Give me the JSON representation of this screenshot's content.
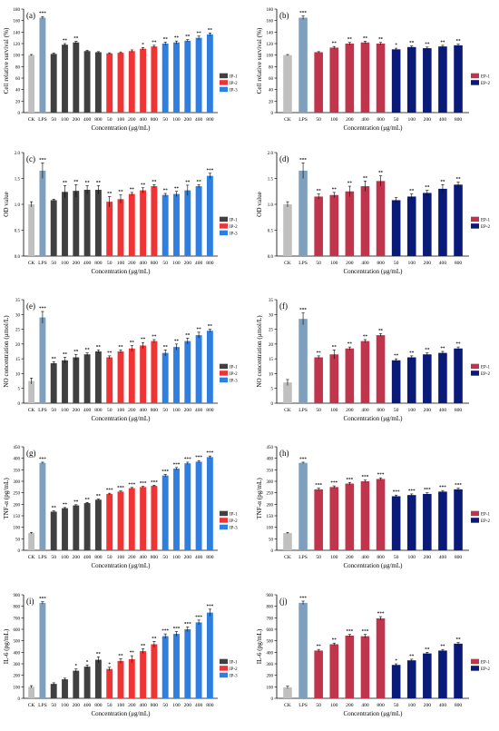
{
  "figure": {
    "x_axis_label": "Concentration (μg/mL)",
    "colors": {
      "ck": "#c0c0c0",
      "lps": "#7f9fbf",
      "ip1": "#404040",
      "ip2": "#ee3434",
      "ip3": "#2f7fe0",
      "ep1": "#c0354c",
      "ep2": "#0a1a78"
    }
  },
  "chart_data": [
    {
      "panel_label": "(a)",
      "type": "bar",
      "ylabel": "Cell relative survival (%)",
      "ylim": [
        0,
        180
      ],
      "yticks": [
        0,
        20,
        40,
        60,
        80,
        100,
        120,
        140,
        160,
        180
      ],
      "xlabel": "Concentration (μg/mL)",
      "categories": [
        "CK",
        "LPS",
        "50",
        "100",
        "200",
        "400",
        "800",
        "50",
        "100",
        "200",
        "400",
        "800",
        "50",
        "100",
        "200",
        "400",
        "800"
      ],
      "values": [
        100,
        165,
        102,
        118,
        122,
        107,
        105,
        103,
        104,
        107,
        111,
        115,
        120,
        122,
        125,
        130,
        136
      ],
      "errors": [
        1,
        2,
        1.5,
        2,
        2,
        1.5,
        1,
        1,
        1.5,
        2,
        2,
        2,
        2.5,
        2.5,
        2,
        3,
        2.5
      ],
      "significance": [
        "",
        "***",
        "",
        "**",
        "**",
        "",
        "",
        "",
        "",
        "",
        "*",
        "**",
        "**",
        "**",
        "**",
        "**",
        "**"
      ],
      "color_keys": [
        "ck",
        "lps",
        "ip1",
        "ip1",
        "ip1",
        "ip1",
        "ip1",
        "ip2",
        "ip2",
        "ip2",
        "ip2",
        "ip2",
        "ip3",
        "ip3",
        "ip3",
        "ip3",
        "ip3"
      ],
      "legend": [
        {
          "label": "IP-1",
          "color_key": "ip1"
        },
        {
          "label": "IP-2",
          "color_key": "ip2"
        },
        {
          "label": "IP-3",
          "color_key": "ip3"
        }
      ]
    },
    {
      "panel_label": "(b)",
      "type": "bar",
      "ylabel": "Cell relative survival (%)",
      "ylim": [
        0,
        180
      ],
      "yticks": [
        0,
        20,
        40,
        60,
        80,
        100,
        120,
        140,
        160,
        180
      ],
      "xlabel": "Concentration (μg/mL)",
      "categories": [
        "CK",
        "LPS",
        "50",
        "100",
        "200",
        "400",
        "800",
        "50",
        "100",
        "200",
        "400",
        "800"
      ],
      "values": [
        100,
        165,
        105,
        113,
        120,
        122,
        120,
        110,
        114,
        112,
        115,
        117
      ],
      "errors": [
        1,
        3,
        1,
        2,
        2,
        2,
        2,
        2,
        2,
        2,
        2,
        2
      ],
      "significance": [
        "",
        "***",
        "",
        "**",
        "**",
        "**",
        "**",
        "*",
        "**",
        "**",
        "**",
        "**"
      ],
      "color_keys": [
        "ck",
        "lps",
        "ep1",
        "ep1",
        "ep1",
        "ep1",
        "ep1",
        "ep2",
        "ep2",
        "ep2",
        "ep2",
        "ep2"
      ],
      "legend": [
        {
          "label": "EP-1",
          "color_key": "ep1"
        },
        {
          "label": "EP-2",
          "color_key": "ep2"
        }
      ]
    },
    {
      "panel_label": "(c)",
      "type": "bar",
      "ylabel": "OD value",
      "ylim": [
        0,
        2.0
      ],
      "yticks": [
        0.0,
        0.5,
        1.0,
        1.5,
        2.0
      ],
      "ytick_labels": [
        "0.0",
        "0.5",
        "1.0",
        "1.5",
        "2.0"
      ],
      "xlabel": "Concentration (μg/mL)",
      "categories": [
        "CK",
        "LPS",
        "50",
        "100",
        "200",
        "400",
        "800",
        "50",
        "100",
        "200",
        "400",
        "800",
        "50",
        "100",
        "200",
        "400",
        "800"
      ],
      "values": [
        1.0,
        1.65,
        1.08,
        1.24,
        1.26,
        1.28,
        1.28,
        1.05,
        1.1,
        1.2,
        1.27,
        1.35,
        1.18,
        1.2,
        1.27,
        1.35,
        1.55
      ],
      "errors": [
        0.05,
        0.15,
        0.02,
        0.12,
        0.12,
        0.08,
        0.08,
        0.1,
        0.08,
        0.03,
        0.05,
        0.03,
        0.03,
        0.05,
        0.1,
        0.03,
        0.05
      ],
      "significance": [
        "",
        "***",
        "",
        "**",
        "**",
        "**",
        "**",
        "**",
        "**",
        "**",
        "**",
        "**",
        "**",
        "**",
        "**",
        "**",
        "***"
      ],
      "color_keys": [
        "ck",
        "lps",
        "ip1",
        "ip1",
        "ip1",
        "ip1",
        "ip1",
        "ip2",
        "ip2",
        "ip2",
        "ip2",
        "ip2",
        "ip3",
        "ip3",
        "ip3",
        "ip3",
        "ip3"
      ],
      "legend": [
        {
          "label": "IP-1",
          "color_key": "ip1"
        },
        {
          "label": "IP-2",
          "color_key": "ip2"
        },
        {
          "label": "IP-3",
          "color_key": "ip3"
        }
      ]
    },
    {
      "panel_label": "(d)",
      "type": "bar",
      "ylabel": "OD value",
      "ylim": [
        0,
        2.0
      ],
      "yticks": [
        0.0,
        0.5,
        1.0,
        1.5,
        2.0
      ],
      "ytick_labels": [
        "0.0",
        "0.5",
        "1.0",
        "1.5",
        "2.0"
      ],
      "xlabel": "Concentration (μg/mL)",
      "categories": [
        "CK",
        "LPS",
        "50",
        "100",
        "200",
        "400",
        "800",
        "50",
        "100",
        "200",
        "400",
        "800"
      ],
      "values": [
        1.0,
        1.65,
        1.15,
        1.18,
        1.25,
        1.35,
        1.45,
        1.08,
        1.15,
        1.22,
        1.3,
        1.38
      ],
      "errors": [
        0.05,
        0.15,
        0.05,
        0.05,
        0.1,
        0.1,
        0.1,
        0.05,
        0.05,
        0.05,
        0.08,
        0.05
      ],
      "significance": [
        "",
        "***",
        "**",
        "**",
        "**",
        "**",
        "**",
        "",
        "**",
        "**",
        "**",
        "**"
      ],
      "color_keys": [
        "ck",
        "lps",
        "ep1",
        "ep1",
        "ep1",
        "ep1",
        "ep1",
        "ep2",
        "ep2",
        "ep2",
        "ep2",
        "ep2"
      ],
      "legend": [
        {
          "label": "EP-1",
          "color_key": "ep1"
        },
        {
          "label": "EP-2",
          "color_key": "ep2"
        }
      ]
    },
    {
      "panel_label": "(e)",
      "type": "bar",
      "ylabel": "NO concentration (μmol/L)",
      "ylim": [
        0,
        35
      ],
      "yticks": [
        0,
        5,
        10,
        15,
        20,
        25,
        30,
        35
      ],
      "xlabel": "Concentration (μg/mL)",
      "categories": [
        "CK",
        "LPS",
        "50",
        "100",
        "200",
        "400",
        "800",
        "50",
        "100",
        "200",
        "400",
        "800",
        "50",
        "100",
        "200",
        "400",
        "800"
      ],
      "values": [
        7.5,
        29,
        13.5,
        14.5,
        15.5,
        16.5,
        17.5,
        15.5,
        17.5,
        18.5,
        19.5,
        21,
        17,
        19,
        21,
        23,
        24.5
      ],
      "errors": [
        1,
        2,
        0.5,
        1,
        1,
        0.5,
        0.5,
        0.5,
        0.5,
        1,
        1,
        0.5,
        1,
        1,
        1,
        1,
        0.5
      ],
      "significance": [
        "",
        "***",
        "**",
        "**",
        "**",
        "**",
        "**",
        "**",
        "**",
        "**",
        "**",
        "**",
        "**",
        "**",
        "**",
        "**",
        "**"
      ],
      "color_keys": [
        "ck",
        "lps",
        "ip1",
        "ip1",
        "ip1",
        "ip1",
        "ip1",
        "ip2",
        "ip2",
        "ip2",
        "ip2",
        "ip2",
        "ip3",
        "ip3",
        "ip3",
        "ip3",
        "ip3"
      ],
      "legend": [
        {
          "label": "IP-1",
          "color_key": "ip1"
        },
        {
          "label": "IP-2",
          "color_key": "ip2"
        },
        {
          "label": "IP-3",
          "color_key": "ip3"
        }
      ]
    },
    {
      "panel_label": "(f)",
      "type": "bar",
      "ylabel": "NO concentration (μmol/L)",
      "ylim": [
        0,
        35
      ],
      "yticks": [
        0,
        5,
        10,
        15,
        20,
        25,
        30,
        35
      ],
      "xlabel": "Concentration (μg/mL)",
      "categories": [
        "CK",
        "LPS",
        "50",
        "100",
        "200",
        "400",
        "800",
        "50",
        "100",
        "200",
        "400",
        "800"
      ],
      "values": [
        7,
        28.5,
        15.5,
        16.5,
        18.5,
        21,
        23,
        14.5,
        15.5,
        16.5,
        17,
        18.5
      ],
      "errors": [
        1,
        2,
        0.5,
        1.5,
        0.5,
        0.5,
        0.5,
        0.5,
        0.5,
        0.5,
        0.5,
        0.5
      ],
      "significance": [
        "",
        "***",
        "**",
        "**",
        "**",
        "**",
        "**",
        "**",
        "**",
        "**",
        "**",
        "**"
      ],
      "color_keys": [
        "ck",
        "lps",
        "ep1",
        "ep1",
        "ep1",
        "ep1",
        "ep1",
        "ep2",
        "ep2",
        "ep2",
        "ep2",
        "ep2"
      ],
      "legend": [
        {
          "label": "EP-1",
          "color_key": "ep1"
        },
        {
          "label": "EP-2",
          "color_key": "ep2"
        }
      ]
    },
    {
      "panel_label": "(g)",
      "type": "bar",
      "ylabel": "TNF-α (pg/mL)",
      "ylim": [
        0,
        450
      ],
      "yticks": [
        0,
        50,
        100,
        150,
        200,
        250,
        300,
        350,
        400,
        450
      ],
      "xlabel": "Concentration (μg/mL)",
      "categories": [
        "CK",
        "LPS",
        "50",
        "100",
        "200",
        "400",
        "800",
        "50",
        "100",
        "200",
        "400",
        "800",
        "50",
        "100",
        "200",
        "400",
        "800"
      ],
      "values": [
        75,
        380,
        168,
        183,
        195,
        205,
        220,
        245,
        255,
        270,
        275,
        280,
        325,
        355,
        378,
        385,
        405
      ],
      "errors": [
        3,
        3,
        3,
        3,
        3,
        3,
        3,
        3,
        3,
        3,
        3,
        3,
        5,
        5,
        5,
        5,
        5
      ],
      "significance": [
        "",
        "***",
        "**",
        "**",
        "**",
        "**",
        "**",
        "***",
        "***",
        "***",
        "***",
        "***",
        "***",
        "***",
        "***",
        "***",
        "***"
      ],
      "color_keys": [
        "ck",
        "lps",
        "ip1",
        "ip1",
        "ip1",
        "ip1",
        "ip1",
        "ip2",
        "ip2",
        "ip2",
        "ip2",
        "ip2",
        "ip3",
        "ip3",
        "ip3",
        "ip3",
        "ip3"
      ],
      "legend": [
        {
          "label": "IP-1",
          "color_key": "ip1"
        },
        {
          "label": "IP-2",
          "color_key": "ip2"
        },
        {
          "label": "IP-3",
          "color_key": "ip3"
        }
      ]
    },
    {
      "panel_label": "(h)",
      "type": "bar",
      "ylabel": "TNF-α (pg/mL)",
      "ylim": [
        0,
        450
      ],
      "yticks": [
        0,
        50,
        100,
        150,
        200,
        250,
        300,
        350,
        400,
        450
      ],
      "xlabel": "Concentration (μg/mL)",
      "categories": [
        "CK",
        "LPS",
        "50",
        "100",
        "200",
        "400",
        "800",
        "50",
        "100",
        "200",
        "400",
        "800"
      ],
      "values": [
        75,
        380,
        265,
        275,
        290,
        300,
        310,
        235,
        240,
        245,
        255,
        265
      ],
      "errors": [
        3,
        3,
        5,
        5,
        5,
        5,
        5,
        5,
        5,
        5,
        5,
        5
      ],
      "significance": [
        "",
        "***",
        "***",
        "***",
        "***",
        "***",
        "***",
        "***",
        "***",
        "***",
        "***",
        "***"
      ],
      "color_keys": [
        "ck",
        "lps",
        "ep1",
        "ep1",
        "ep1",
        "ep1",
        "ep1",
        "ep2",
        "ep2",
        "ep2",
        "ep2",
        "ep2"
      ],
      "legend": [
        {
          "label": "EP-1",
          "color_key": "ep1"
        },
        {
          "label": "EP-2",
          "color_key": "ep2"
        }
      ]
    },
    {
      "panel_label": "(i)",
      "type": "bar",
      "ylabel": "IL-6 (pg/mL)",
      "ylim": [
        0,
        900
      ],
      "yticks": [
        0,
        100,
        200,
        300,
        400,
        500,
        600,
        700,
        800,
        900
      ],
      "xlabel": "Concentration (μg/mL)",
      "categories": [
        "CK",
        "LPS",
        "50",
        "100",
        "200",
        "400",
        "800",
        "50",
        "100",
        "200",
        "400",
        "800",
        "50",
        "100",
        "200",
        "400",
        "800"
      ],
      "values": [
        100,
        830,
        125,
        165,
        240,
        275,
        335,
        255,
        325,
        340,
        410,
        470,
        540,
        560,
        600,
        660,
        745
      ],
      "errors": [
        10,
        10,
        10,
        10,
        15,
        15,
        25,
        15,
        20,
        30,
        20,
        25,
        20,
        20,
        20,
        20,
        30
      ],
      "significance": [
        "",
        "***",
        "",
        "",
        "*",
        "*",
        "**",
        "*",
        "**",
        "**",
        "**",
        "**",
        "***",
        "***",
        "***",
        "***",
        "***"
      ],
      "color_keys": [
        "ck",
        "lps",
        "ip1",
        "ip1",
        "ip1",
        "ip1",
        "ip1",
        "ip2",
        "ip2",
        "ip2",
        "ip2",
        "ip2",
        "ip3",
        "ip3",
        "ip3",
        "ip3",
        "ip3"
      ],
      "legend": [
        {
          "label": "IP-1",
          "color_key": "ip1"
        },
        {
          "label": "IP-2",
          "color_key": "ip2"
        },
        {
          "label": "IP-3",
          "color_key": "ip3"
        }
      ]
    },
    {
      "panel_label": "(j)",
      "type": "bar",
      "ylabel": "IL-6 (pg/mL)",
      "ylim": [
        0,
        900
      ],
      "yticks": [
        0,
        100,
        200,
        300,
        400,
        500,
        600,
        700,
        800,
        900
      ],
      "xlabel": "Concentration (μg/mL)",
      "categories": [
        "CK",
        "LPS",
        "50",
        "100",
        "200",
        "400",
        "800",
        "50",
        "100",
        "200",
        "400",
        "800"
      ],
      "values": [
        95,
        830,
        415,
        470,
        545,
        540,
        695,
        290,
        330,
        390,
        415,
        475
      ],
      "errors": [
        10,
        15,
        10,
        10,
        10,
        15,
        15,
        10,
        10,
        10,
        10,
        10
      ],
      "significance": [
        "",
        "***",
        "**",
        "**",
        "***",
        "***",
        "***",
        "*",
        "**",
        "**",
        "**",
        "**"
      ],
      "color_keys": [
        "ck",
        "lps",
        "ep1",
        "ep1",
        "ep1",
        "ep1",
        "ep1",
        "ep2",
        "ep2",
        "ep2",
        "ep2",
        "ep2"
      ],
      "legend": [
        {
          "label": "EP-1",
          "color_key": "ep1"
        },
        {
          "label": "EP-2",
          "color_key": "ep2"
        }
      ]
    }
  ]
}
